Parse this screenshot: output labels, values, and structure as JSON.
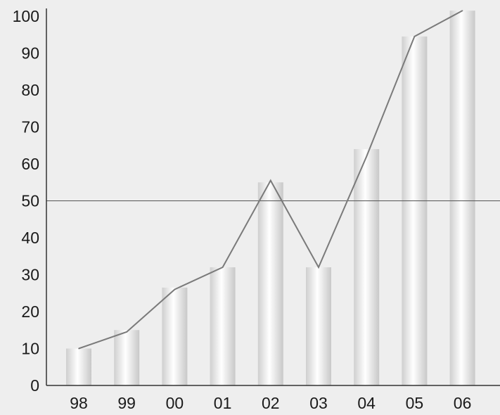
{
  "chart_data": {
    "type": "bar",
    "categories": [
      "98",
      "99",
      "00",
      "01",
      "02",
      "03",
      "04",
      "05",
      "06"
    ],
    "series": [
      {
        "type": "bar",
        "values": [
          10,
          15,
          26.5,
          32,
          55,
          32,
          64,
          94.5,
          101.5
        ]
      },
      {
        "type": "line",
        "values": [
          10,
          14.5,
          26,
          32,
          55.5,
          32,
          62,
          94.5,
          101.5
        ]
      }
    ],
    "ylim": [
      0,
      103
    ],
    "yticks": [
      0,
      10,
      20,
      30,
      40,
      50,
      60,
      70,
      80,
      90,
      100
    ],
    "reference_line": 50,
    "grid": false,
    "title": "",
    "xlabel": "",
    "ylabel": "",
    "colors": {
      "background": "#eeeeee",
      "bar_edge": "#cfcfcf",
      "bar_center": "#ffffff",
      "line": "#7a7a7a",
      "axis": "#333333",
      "reference_line": "#555555"
    }
  }
}
